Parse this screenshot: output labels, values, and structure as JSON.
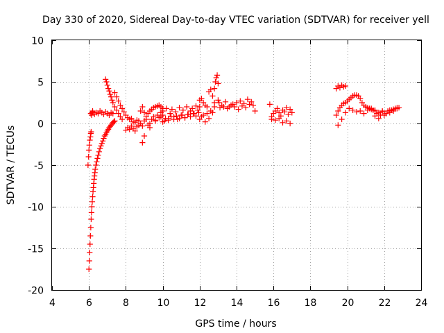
{
  "chart_data": {
    "type": "scatter",
    "title": "Day 330 of 2020, Sidereal Day-to-day VTEC variation (SDTVAR) for receiver yell",
    "xlabel": "GPS time / hours",
    "ylabel": "SDTVAR / TECUs",
    "xlim": [
      4,
      24
    ],
    "ylim": [
      -20,
      10
    ],
    "xticks": [
      4,
      6,
      8,
      10,
      12,
      14,
      16,
      18,
      20,
      22,
      24
    ],
    "yticks": [
      -20,
      -15,
      -10,
      -5,
      0,
      5,
      10
    ],
    "grid": true,
    "marker": "+",
    "color": "#ff0000",
    "series": [
      {
        "name": "SDTVAR",
        "x": [
          6.0,
          6.02,
          6.04,
          6.06,
          6.08,
          6.1,
          6.12,
          6.14,
          6.16,
          6.18,
          6.2,
          6.22,
          6.24,
          6.26,
          6.28,
          6.3,
          6.32,
          6.34,
          6.38,
          6.42,
          6.46,
          6.5,
          6.55,
          6.6,
          6.65,
          6.7,
          6.75,
          6.8,
          6.85,
          6.9,
          6.95,
          7.0,
          7.05,
          7.1,
          7.15,
          7.2,
          7.25,
          7.3,
          7.35,
          7.4,
          5.95,
          5.98,
          6.0,
          6.02,
          6.05,
          6.08,
          6.1,
          6.12,
          6.15,
          6.18,
          6.2,
          6.1,
          6.2,
          6.3,
          6.4,
          6.5,
          6.6,
          6.7,
          6.8,
          6.9,
          7.0,
          7.1,
          7.2,
          7.3,
          6.9,
          6.95,
          7.0,
          7.05,
          7.1,
          7.15,
          7.2,
          7.25,
          7.3,
          7.4,
          7.5,
          7.6,
          7.7,
          7.8,
          7.4,
          7.5,
          7.6,
          7.7,
          7.8,
          7.9,
          8.0,
          8.1,
          8.2,
          8.3,
          8.4,
          8.5,
          8.6,
          8.7,
          8.8,
          8.9,
          9.0,
          9.1,
          9.2,
          9.3,
          9.4,
          9.5,
          9.6,
          9.7,
          9.8,
          9.9,
          10.0,
          8.0,
          8.1,
          8.2,
          8.3,
          8.4,
          8.5,
          8.6,
          8.7,
          8.8,
          8.9,
          9.0,
          9.1,
          9.2,
          9.3,
          9.4,
          9.5,
          9.6,
          9.7,
          9.8,
          9.9,
          8.9,
          9.0,
          9.3,
          9.6,
          9.9,
          10.0,
          10.0,
          10.1,
          10.2,
          10.3,
          10.4,
          10.5,
          10.6,
          10.7,
          10.8,
          10.9,
          11.0,
          11.1,
          11.2,
          11.3,
          11.4,
          11.5,
          11.6,
          11.7,
          11.8,
          11.9,
          12.0,
          10.0,
          10.15,
          10.3,
          10.45,
          10.6,
          10.75,
          10.9,
          11.05,
          11.2,
          11.35,
          11.5,
          11.65,
          11.8,
          11.95,
          12.0,
          12.1,
          12.2,
          12.3,
          12.4,
          12.5,
          12.6,
          12.7,
          12.8,
          12.0,
          12.1,
          12.2,
          12.3,
          12.4,
          12.5,
          12.6,
          12.7,
          12.8,
          12.8,
          12.85,
          12.9,
          12.95,
          13.0,
          13.05,
          13.0,
          13.2,
          13.4,
          13.6,
          13.8,
          14.0,
          14.2,
          14.4,
          14.6,
          14.8,
          15.0,
          13.1,
          13.3,
          13.5,
          13.7,
          13.9,
          14.1,
          14.3,
          14.5,
          14.7,
          14.9,
          15.8,
          15.9,
          16.0,
          16.1,
          16.2,
          16.3,
          16.4,
          16.5,
          16.6,
          16.7,
          16.8,
          16.9,
          17.0,
          15.9,
          16.1,
          16.3,
          16.5,
          16.7,
          16.9,
          19.4,
          19.5,
          19.6,
          19.7,
          19.8,
          19.9,
          19.4,
          19.5,
          19.6,
          19.7,
          19.8,
          19.9,
          20.0,
          20.1,
          20.2,
          20.3,
          20.4,
          20.5,
          20.6,
          20.7,
          20.8,
          20.9,
          21.0,
          21.1,
          21.2,
          21.3,
          21.4,
          21.5,
          19.5,
          19.7,
          19.9,
          20.1,
          20.3,
          20.5,
          20.7,
          20.9,
          21.1,
          21.3,
          21.5,
          21.6,
          21.7,
          21.8,
          21.9,
          22.0,
          22.1,
          22.2,
          22.3,
          22.4,
          22.5,
          22.6,
          22.7,
          22.8,
          21.5,
          21.7,
          21.9,
          22.1,
          22.3,
          22.5,
          22.7
        ],
        "y": [
          -17.5,
          -16.5,
          -15.5,
          -14.5,
          -13.5,
          -12.5,
          -11.5,
          -10.7,
          -10.0,
          -9.4,
          -8.8,
          -8.2,
          -7.7,
          -7.2,
          -6.7,
          -6.3,
          -5.9,
          -5.5,
          -5.0,
          -4.6,
          -4.2,
          -3.8,
          -3.4,
          -3.0,
          -2.7,
          -2.4,
          -2.1,
          -1.8,
          -1.5,
          -1.3,
          -1.1,
          -0.9,
          -0.7,
          -0.5,
          -0.35,
          -0.2,
          -0.05,
          0.1,
          0.2,
          0.3,
          -5.0,
          -4.0,
          -3.2,
          -2.6,
          -2.0,
          -1.6,
          -1.2,
          -1.0,
          1.0,
          1.3,
          1.5,
          1.2,
          1.4,
          1.1,
          1.3,
          1.2,
          1.5,
          1.3,
          1.1,
          1.4,
          1.2,
          1.0,
          1.3,
          1.2,
          5.3,
          5.0,
          4.6,
          4.2,
          3.9,
          3.5,
          3.2,
          2.8,
          2.5,
          2.0,
          1.6,
          1.2,
          0.8,
          0.5,
          3.7,
          3.2,
          2.7,
          2.2,
          1.8,
          1.4,
          1.0,
          0.7,
          0.5,
          0.6,
          0.2,
          0.1,
          0.4,
          0.3,
          0.0,
          -0.3,
          0.3,
          0.8,
          1.2,
          1.5,
          1.7,
          1.9,
          2.0,
          2.1,
          2.2,
          2.0,
          1.8,
          -0.8,
          -0.5,
          -0.7,
          -0.3,
          -0.6,
          -0.9,
          -0.4,
          -0.2,
          1.5,
          2.0,
          1.3,
          0.5,
          -0.2,
          0.0,
          0.5,
          0.8,
          0.4,
          1.0,
          0.7,
          1.3,
          -2.3,
          -1.5,
          -0.5,
          0.3,
          0.8,
          1.0,
          1.5,
          0.3,
          1.8,
          0.6,
          1.2,
          1.7,
          0.8,
          1.4,
          0.5,
          1.9,
          1.0,
          1.6,
          0.7,
          2.0,
          1.1,
          1.5,
          1.8,
          1.2,
          2.1,
          1.6,
          2.0,
          0.2,
          0.6,
          0.4,
          0.8,
          0.5,
          0.9,
          0.6,
          1.0,
          0.7,
          1.1,
          0.8,
          1.2,
          0.9,
          1.3,
          2.8,
          3.0,
          2.5,
          2.2,
          2.0,
          3.8,
          4.1,
          3.3,
          2.0,
          0.5,
          0.8,
          1.0,
          0.2,
          1.2,
          0.6,
          1.5,
          1.3,
          2.5,
          4.2,
          5.0,
          5.5,
          5.8,
          4.8,
          2.5,
          2.8,
          2.2,
          2.6,
          2.0,
          2.3,
          2.5,
          2.7,
          2.4,
          2.9,
          2.6,
          1.5,
          1.9,
          2.0,
          1.8,
          2.2,
          2.0,
          1.7,
          2.1,
          1.9,
          2.3,
          2.2,
          2.3,
          0.8,
          1.2,
          1.5,
          1.8,
          1.3,
          0.9,
          1.6,
          1.4,
          1.9,
          1.1,
          1.7,
          1.3,
          0.5,
          0.4,
          0.6,
          0.1,
          0.3,
          0.0,
          4.2,
          4.5,
          4.3,
          4.6,
          4.4,
          4.5,
          1.0,
          1.5,
          1.9,
          2.2,
          2.4,
          2.5,
          2.7,
          2.9,
          3.1,
          3.3,
          3.4,
          3.4,
          3.3,
          3.0,
          2.5,
          2.2,
          2.0,
          1.9,
          1.8,
          1.7,
          1.6,
          1.5,
          -0.2,
          0.5,
          1.3,
          1.8,
          1.6,
          1.4,
          1.5,
          1.2,
          1.6,
          1.8,
          0.9,
          1.2,
          0.6,
          1.0,
          1.4,
          1.0,
          1.2,
          1.5,
          1.3,
          1.6,
          1.7,
          1.8,
          1.9,
          1.9,
          1.6,
          1.3,
          1.5,
          1.2,
          1.6,
          1.5,
          1.8
        ]
      }
    ]
  }
}
